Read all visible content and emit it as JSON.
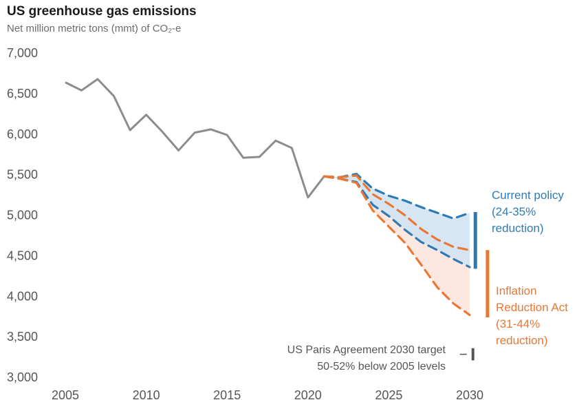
{
  "chart_data": {
    "type": "line",
    "title": "US greenhouse gas emissions",
    "subtitle": "Net million metric tons (mmt) of CO₂-e",
    "ylim": [
      3000,
      7000
    ],
    "y_ticks": [
      "3,000",
      "3,500",
      "4,000",
      "4,500",
      "5,000",
      "5,500",
      "6,000",
      "6,500",
      "7,000"
    ],
    "y_tick_values": [
      3000,
      3500,
      4000,
      4500,
      5000,
      5500,
      6000,
      6500,
      7000
    ],
    "x_ticks": [
      "2005",
      "2010",
      "2015",
      "2020",
      "2025",
      "2030"
    ],
    "x_tick_values": [
      2005,
      2010,
      2015,
      2020,
      2025,
      2030
    ],
    "grid": false,
    "colors": {
      "historical": "#8c8c8c",
      "current_policy": "#2e7bb4",
      "ira": "#e87833",
      "current_fill": "#cfe2f3",
      "ira_fill": "#fbe3dc",
      "paris": "#555555"
    },
    "historical": {
      "x": [
        2005,
        2006,
        2007,
        2008,
        2009,
        2010,
        2011,
        2012,
        2013,
        2014,
        2015,
        2016,
        2017,
        2018,
        2019,
        2020,
        2021
      ],
      "y": [
        6630,
        6530,
        6670,
        6460,
        6040,
        6230,
        6020,
        5790,
        6010,
        6050,
        5980,
        5700,
        5710,
        5910,
        5820,
        5210,
        5470
      ]
    },
    "projections": [
      {
        "group": "current_policy",
        "bound": "high",
        "x": [
          2021,
          2022,
          2023,
          2024,
          2025,
          2026,
          2027,
          2028,
          2029,
          2030
        ],
        "y": [
          5470,
          5460,
          5500,
          5320,
          5230,
          5170,
          5090,
          5020,
          4950,
          5020
        ]
      },
      {
        "group": "current_policy",
        "bound": "low",
        "x": [
          2021,
          2022,
          2023,
          2024,
          2025,
          2026,
          2027,
          2028,
          2029,
          2030
        ],
        "y": [
          5470,
          5440,
          5400,
          5120,
          4980,
          4810,
          4660,
          4560,
          4450,
          4350
        ]
      },
      {
        "group": "ira",
        "bound": "high",
        "x": [
          2021,
          2022,
          2023,
          2024,
          2025,
          2026,
          2027,
          2028,
          2029,
          2030
        ],
        "y": [
          5470,
          5460,
          5480,
          5250,
          5130,
          4990,
          4820,
          4690,
          4600,
          4560
        ]
      },
      {
        "group": "ira",
        "bound": "low",
        "x": [
          2021,
          2022,
          2023,
          2024,
          2025,
          2026,
          2027,
          2028,
          2029,
          2030
        ],
        "y": [
          5470,
          5440,
          5390,
          5050,
          4850,
          4650,
          4380,
          4100,
          3900,
          3760
        ]
      }
    ],
    "ranges": [
      {
        "group": "current_policy",
        "x": 2030.35,
        "ymin": 4330,
        "ymax": 5030
      },
      {
        "group": "ira",
        "x": 2031.1,
        "ymin": 3730,
        "ymax": 4560
      },
      {
        "group": "paris",
        "x": 2030.2,
        "ymin": 3200,
        "ymax": 3350
      }
    ],
    "annotations": {
      "current_policy": [
        "Current policy",
        "(24-35%",
        "reduction)"
      ],
      "ira": [
        "Inflation",
        "Reduction Act",
        "(31-44%",
        "reduction)"
      ],
      "paris": [
        "US Paris Agreement 2030 target",
        "50-52% below 2005 levels"
      ]
    }
  }
}
